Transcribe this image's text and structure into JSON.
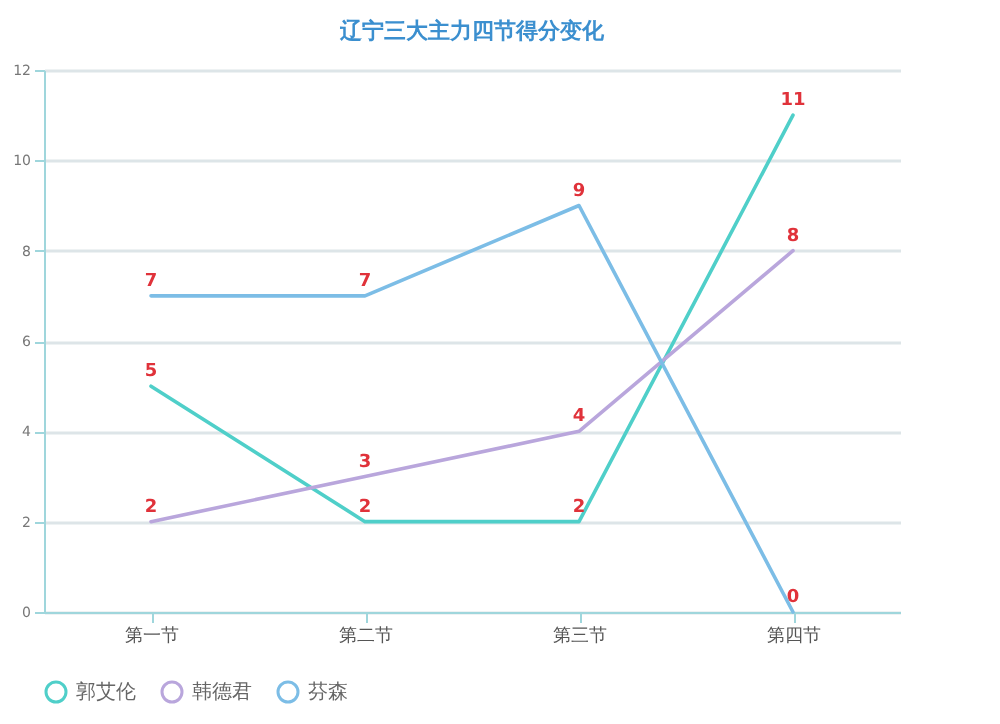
{
  "chart_data": {
    "type": "line",
    "title": "辽宁三大主力四节得分变化",
    "categories": [
      "第一节",
      "第二节",
      "第三节",
      "第四节"
    ],
    "series": [
      {
        "name": "郭艾伦",
        "color": "#4fcfc9",
        "values": [
          5,
          2,
          2,
          11
        ]
      },
      {
        "name": "韩德君",
        "color": "#b9a6dc",
        "values": [
          2,
          3,
          4,
          8
        ]
      },
      {
        "name": "芬森",
        "color": "#7cbde6",
        "values": [
          7,
          7,
          9,
          0
        ]
      }
    ],
    "ylim": [
      0,
      12
    ],
    "yticks": [
      0,
      2,
      4,
      6,
      8,
      10,
      12
    ],
    "grid": "y",
    "legend": "bottom",
    "data_labels": true
  }
}
